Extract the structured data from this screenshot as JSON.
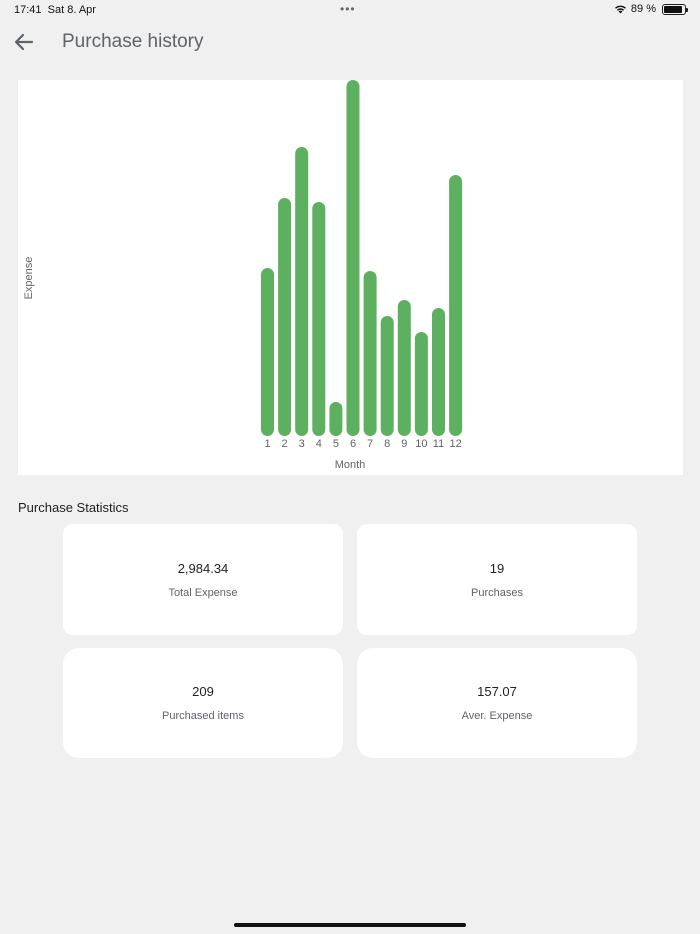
{
  "status_bar": {
    "time": "17:41",
    "date": "Sat 8. Apr",
    "dots": "•••",
    "battery_text": "89 %",
    "battery_level": 0.89
  },
  "header": {
    "title": "Purchase history"
  },
  "chart_data": {
    "type": "bar",
    "categories": [
      "1",
      "2",
      "3",
      "4",
      "5",
      "6",
      "7",
      "8",
      "9",
      "10",
      "11",
      "12"
    ],
    "values": [
      168,
      238,
      289,
      234,
      34,
      356,
      165,
      120,
      136,
      104,
      128,
      261
    ],
    "ylabel": "Expense",
    "xlabel": "Month",
    "ylim": [
      0,
      356
    ],
    "bar_color": "#5cb05f",
    "grid": false
  },
  "stats": {
    "title": "Purchase Statistics",
    "items": [
      {
        "value": "2,984.34",
        "label": "Total Expense"
      },
      {
        "value": "19",
        "label": "Purchases"
      },
      {
        "value": "209",
        "label": "Purchased items"
      },
      {
        "value": "157.07",
        "label": "Aver. Expense"
      }
    ]
  }
}
